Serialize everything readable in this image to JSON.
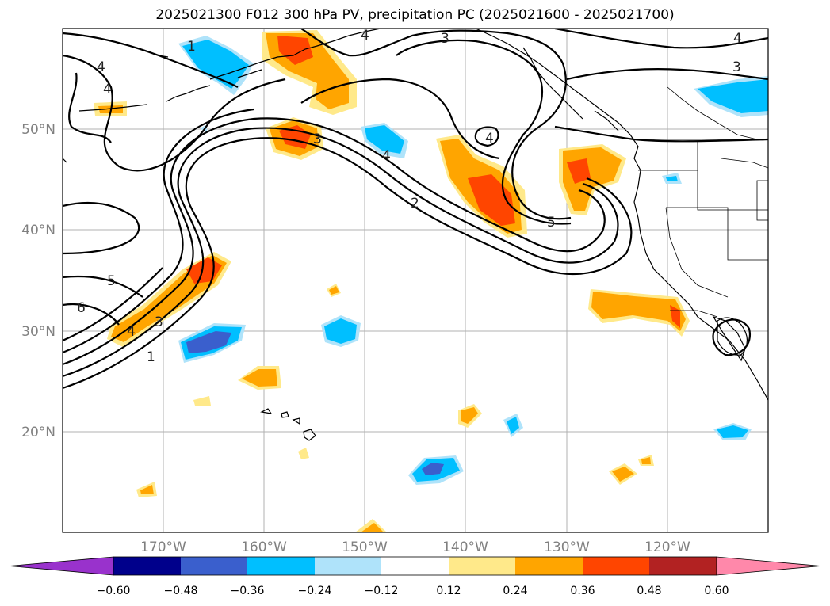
{
  "title": "2025021300 F012 300 hPa PV, precipitation PC (2025021600 - 2025021700)",
  "map": {
    "projection": "PlateCarree",
    "lon_range": [
      -180,
      -110
    ],
    "lat_range": [
      10,
      60
    ],
    "grid": true,
    "lon_ticks": [
      "170°W",
      "160°W",
      "150°W",
      "140°W",
      "130°W",
      "120°W"
    ],
    "lat_ticks": [
      "50°N",
      "40°N",
      "30°N",
      "20°N"
    ]
  },
  "pv_contour_labels": [
    "1",
    "3",
    "4",
    "4",
    "3",
    "4",
    "3",
    "3",
    "4",
    "4",
    "2",
    "4",
    "5",
    "5",
    "6",
    "4",
    "3",
    "1"
  ],
  "colorbar": {
    "extend": "both",
    "tick_labels": [
      "−0.60",
      "−0.48",
      "−0.36",
      "−0.24",
      "−0.12",
      "0.12",
      "0.24",
      "0.36",
      "0.48",
      "0.60"
    ],
    "colors": [
      "#9932cc",
      "#00008b",
      "#3a5fcd",
      "#00bfff",
      "#afe3fa",
      "#ffffff",
      "#ffe98a",
      "#ffa500",
      "#ff4500",
      "#b22222",
      "#ff88aa"
    ]
  }
}
